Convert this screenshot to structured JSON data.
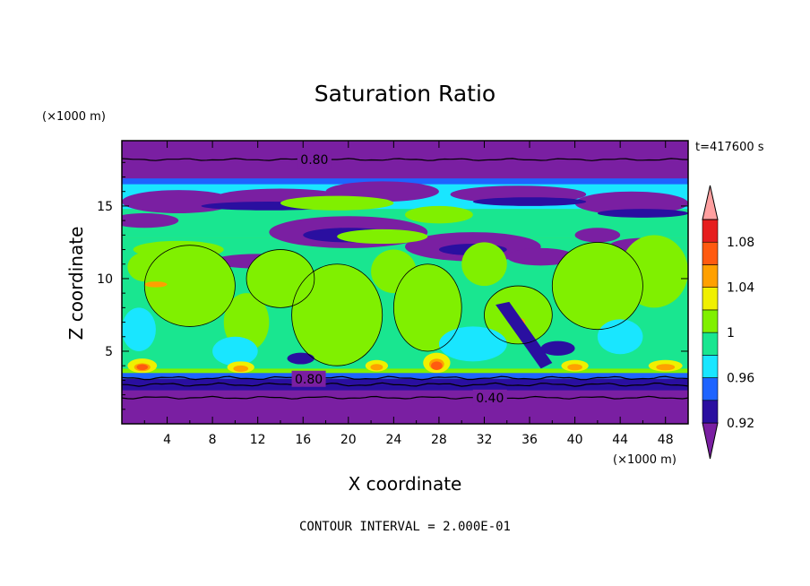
{
  "chart_data": {
    "type": "heatmap",
    "title": "Saturation Ratio",
    "xlabel": "X coordinate",
    "ylabel": "Z coordinate",
    "x_units": "(×1000 m)",
    "y_units": "(×1000 m)",
    "xlim": [
      0,
      50
    ],
    "ylim": [
      0,
      19.5
    ],
    "x_ticks": [
      4,
      8,
      12,
      16,
      20,
      24,
      28,
      32,
      36,
      40,
      44,
      48
    ],
    "y_ticks": [
      5,
      10,
      15
    ],
    "time_label": "t=417600 s",
    "contour_interval": "CONTOUR INTERVAL = 2.000E-01",
    "contour_labels": [
      {
        "text": "0.80",
        "x": 17,
        "z": 18.2
      },
      {
        "text": "0.80",
        "x": 16.5,
        "z": 3.1
      },
      {
        "text": "0.40",
        "x": 32.5,
        "z": 1.8
      }
    ],
    "colorbar": {
      "colors": [
        "#7a1fa2",
        "#2a0fa0",
        "#1e64ff",
        "#19e6ff",
        "#19e690",
        "#80f000",
        "#f0f000",
        "#ffa000",
        "#ff5a10",
        "#e61e1e",
        "#ffa0a0"
      ],
      "levels": [
        0.92,
        0.94,
        0.96,
        0.98,
        1,
        1.02,
        1.04,
        1.06,
        1.08,
        1.1
      ],
      "tick_labels": [
        "0.92",
        "0.96",
        "1",
        "1.04",
        "1.08"
      ]
    }
  }
}
